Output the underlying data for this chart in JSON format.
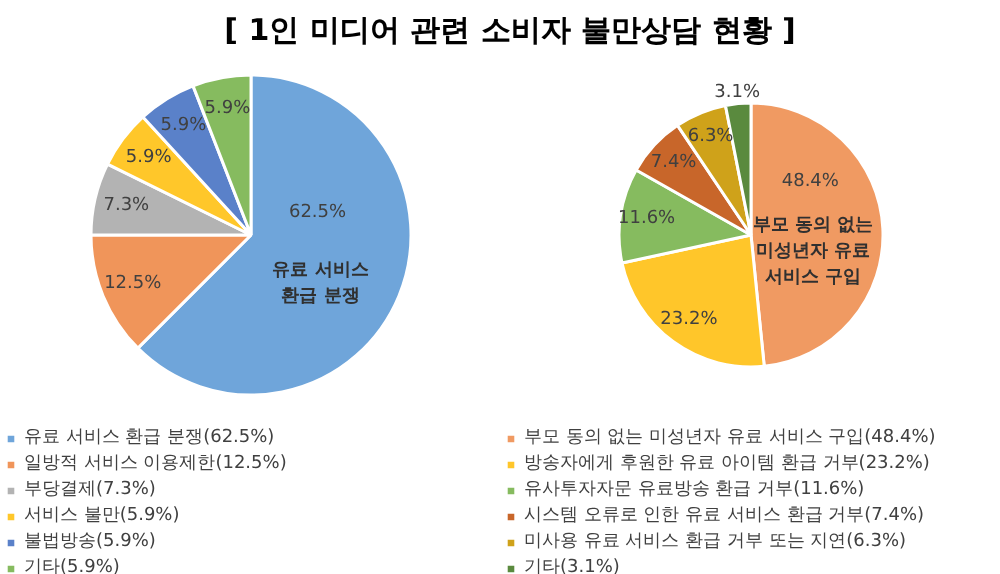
{
  "chart_data": [
    {
      "type": "pie",
      "title": "[ 1인 미디어 관련 소비자 불만상담 현황 ]",
      "categories": [
        "유료 서비스 환급 분쟁(62.5%)",
        "일방적 서비스 이용제한(12.5%)",
        "부당결제(7.3%)",
        "서비스 불만(5.9%)",
        "불법방송(5.9%)",
        "기타(5.9%)"
      ],
      "values": [
        62.5,
        12.5,
        7.3,
        5.9,
        5.9,
        5.9
      ],
      "value_labels": [
        "62.5%",
        "12.5%",
        "7.3%",
        "5.9%",
        "5.9%",
        "5.9%"
      ],
      "colors": [
        "#6fa5da",
        "#f0955a",
        "#b3b3b3",
        "#ffc72a",
        "#5a81c9",
        "#86bb5f"
      ],
      "annotations": [
        "유료 서비스\n환급 분쟁"
      ],
      "legend": "bottom"
    },
    {
      "type": "pie",
      "categories": [
        "부모 동의 없는 미성년자 유료 서비스 구입(48.4%)",
        "방송자에게 후원한 유료 아이템 환급 거부(23.2%)",
        "유사투자자문 유료방송 환급 거부(11.6%)",
        "시스템 오류로 인한 유료 서비스 환급 거부(7.4%)",
        "미사용 유료 서비스 환급 거부 또는 지연(6.3%)",
        "기타(3.1%)"
      ],
      "values": [
        48.4,
        23.2,
        11.6,
        7.4,
        6.3,
        3.1
      ],
      "value_labels": [
        "48.4%",
        "23.2%",
        "11.6%",
        "7.4%",
        "6.3%",
        "3.1%"
      ],
      "colors": [
        "#f09a62",
        "#ffc62a",
        "#86bb5f",
        "#c8662a",
        "#cfa21a",
        "#5a8a3e"
      ],
      "annotations": [
        "부모 동의 없는\n미성년자 유료\n서비스 구입"
      ],
      "legend": "bottom"
    }
  ]
}
